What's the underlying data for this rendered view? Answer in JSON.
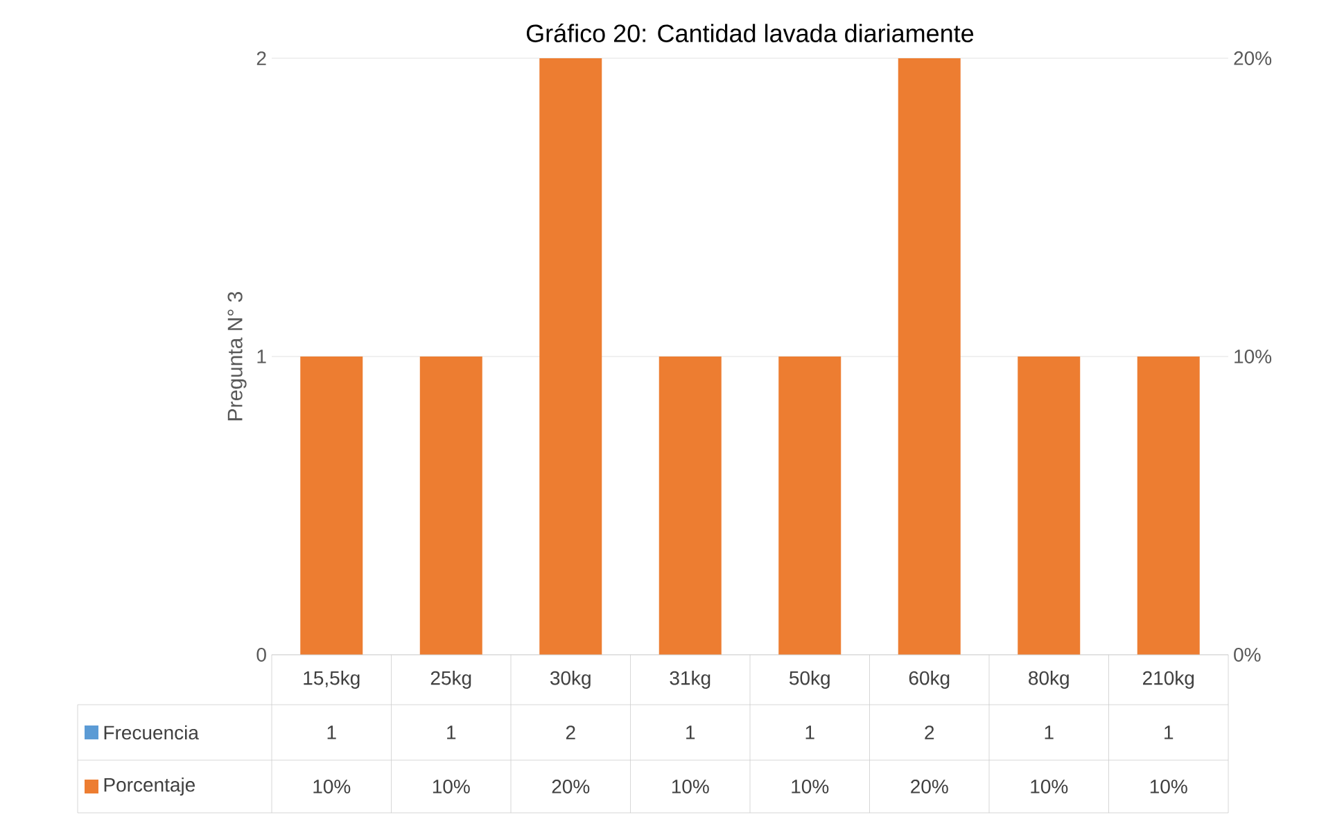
{
  "chart_data": {
    "type": "bar",
    "title": "Gráfico 20: Cantidad lavada diariamente",
    "ylabel": "Pregunta N° 3",
    "categories": [
      "15,5kg",
      "25kg",
      "30kg",
      "31kg",
      "50kg",
      "60kg",
      "80kg",
      "210kg"
    ],
    "series": [
      {
        "name": "Frecuencia",
        "color": "#5b9bd5",
        "values": [
          null,
          null,
          null,
          null,
          null,
          null,
          null,
          null
        ],
        "value_labels": [
          "1",
          "1",
          "2",
          "1",
          "1",
          "2",
          "1",
          "1"
        ]
      },
      {
        "name": "Porcentaje",
        "color": "#ed7d31",
        "axis": "y2",
        "values": [
          10,
          10,
          20,
          10,
          10,
          20,
          10,
          10
        ],
        "value_labels": [
          "10%",
          "10%",
          "20%",
          "10%",
          "10%",
          "20%",
          "10%",
          "10%"
        ]
      }
    ],
    "ylim": [
      0,
      2
    ],
    "yticks": [
      0,
      1,
      2
    ],
    "y2lim": [
      0,
      20
    ],
    "y2ticks": [
      {
        "value": 0,
        "label": "0%"
      },
      {
        "value": 10,
        "label": "10%"
      },
      {
        "value": 20,
        "label": "20%"
      }
    ],
    "grid": "y",
    "legend": "bottom"
  }
}
